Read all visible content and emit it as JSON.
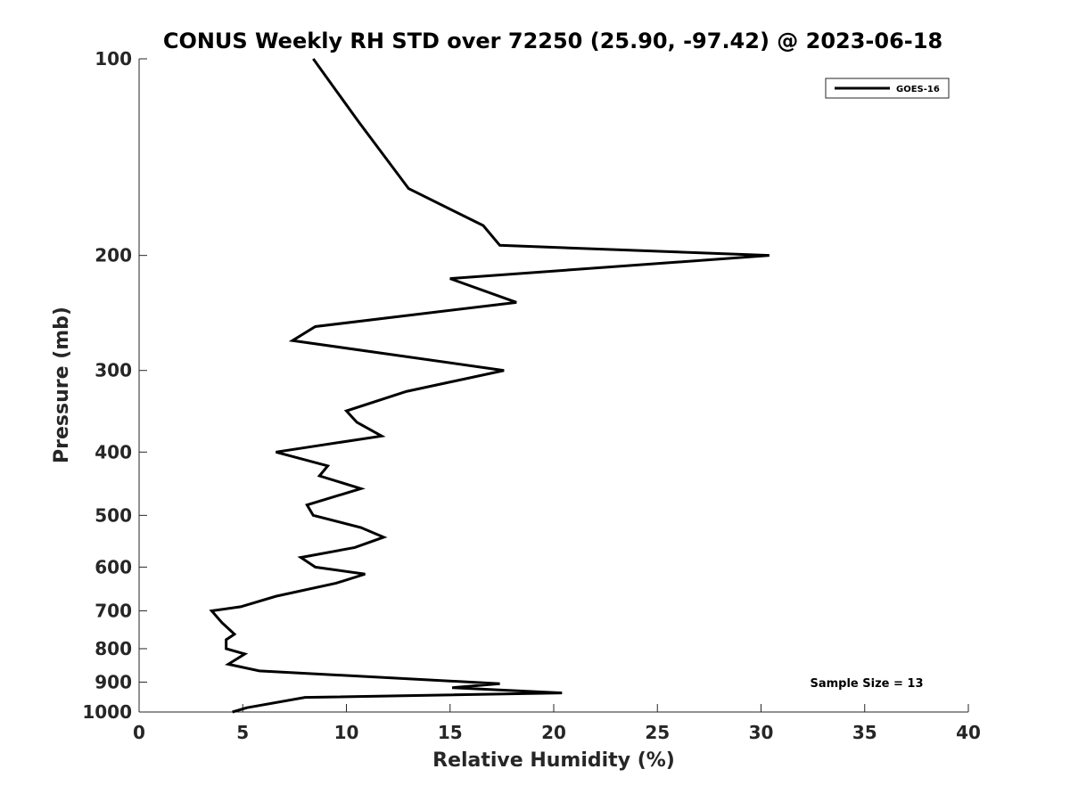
{
  "chart_data": {
    "type": "line",
    "title": "CONUS Weekly RH STD over 72250 (25.90, -97.42) @ 2023-06-18",
    "xlabel": "Relative Humidity (%)",
    "ylabel": "Pressure (mb)",
    "xlim": [
      0,
      40
    ],
    "ylim": [
      100,
      1000
    ],
    "y_scale": "log",
    "y_reversed": true,
    "x_ticks": [
      0,
      5,
      10,
      15,
      20,
      25,
      30,
      35,
      40
    ],
    "y_ticks": [
      100,
      200,
      300,
      400,
      500,
      600,
      700,
      800,
      900,
      1000
    ],
    "grid": false,
    "legend": {
      "position": "top-right",
      "entries": [
        "GOES-16"
      ]
    },
    "annotation": "Sample Size = 13",
    "line_color": "#000000",
    "series": [
      {
        "name": "GOES-16",
        "points": [
          [
            8.4,
            100
          ],
          [
            10.6,
            125
          ],
          [
            13.0,
            158
          ],
          [
            16.6,
            180
          ],
          [
            17.4,
            193
          ],
          [
            30.4,
            200
          ],
          [
            15.0,
            217
          ],
          [
            18.2,
            236
          ],
          [
            8.5,
            257
          ],
          [
            7.4,
            270
          ],
          [
            17.6,
            300
          ],
          [
            12.9,
            323
          ],
          [
            10.0,
            346
          ],
          [
            10.5,
            360
          ],
          [
            11.7,
            378
          ],
          [
            6.6,
            400
          ],
          [
            9.1,
            420
          ],
          [
            8.7,
            435
          ],
          [
            10.7,
            455
          ],
          [
            8.1,
            482
          ],
          [
            8.4,
            500
          ],
          [
            10.7,
            522
          ],
          [
            11.8,
            540
          ],
          [
            10.4,
            560
          ],
          [
            7.8,
            580
          ],
          [
            8.5,
            600
          ],
          [
            10.9,
            615
          ],
          [
            9.5,
            635
          ],
          [
            6.6,
            665
          ],
          [
            4.9,
            690
          ],
          [
            3.5,
            700
          ],
          [
            4.0,
            730
          ],
          [
            4.6,
            760
          ],
          [
            4.2,
            775
          ],
          [
            4.2,
            800
          ],
          [
            5.1,
            815
          ],
          [
            4.3,
            845
          ],
          [
            5.8,
            865
          ],
          [
            17.4,
            905
          ],
          [
            15.1,
            918
          ],
          [
            20.4,
            935
          ],
          [
            8.0,
            950
          ],
          [
            5.2,
            985
          ],
          [
            4.5,
            1000
          ]
        ]
      }
    ]
  }
}
